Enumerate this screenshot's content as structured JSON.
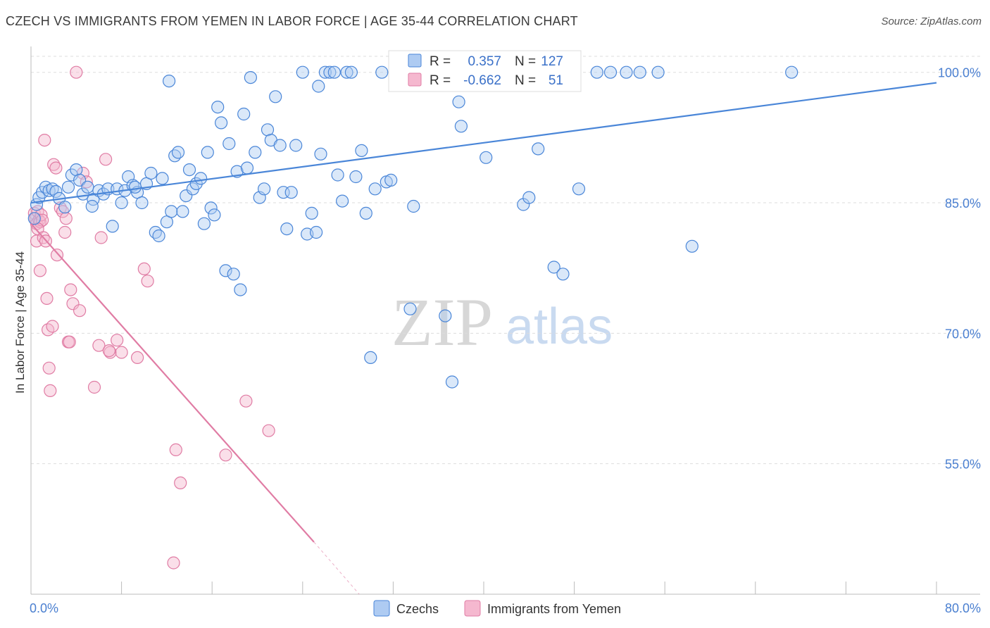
{
  "title": "CZECH VS IMMIGRANTS FROM YEMEN IN LABOR FORCE | AGE 35-44 CORRELATION CHART",
  "source": "Source: ZipAtlas.com",
  "watermark": {
    "zip": "ZIP",
    "atlas": "atlas"
  },
  "colors": {
    "blue": "#4a86d8",
    "blue_fill": "#aecbf2",
    "pink": "#e07ca4",
    "pink_fill": "#f5b8cf",
    "axis_text": "#4a7fd0"
  },
  "stats": {
    "blue": {
      "r_label": "R =",
      "r_value": "0.357",
      "n_label": "N =",
      "n_value": "127"
    },
    "pink": {
      "r_label": "R =",
      "r_value": "-0.662",
      "n_label": "N =",
      "n_value": "51"
    }
  },
  "chart_data": {
    "type": "scatter",
    "ylabel": "In Labor Force | Age 35-44",
    "xlim": [
      0,
      80
    ],
    "ylim": [
      40,
      102
    ],
    "x_tick_labels": [
      "0.0%",
      "80.0%"
    ],
    "y_ticks": [
      55,
      70,
      85,
      100
    ],
    "y_tick_labels": [
      "55.0%",
      "70.0%",
      "85.0%",
      "100.0%"
    ],
    "grid": "horizontal dashed",
    "legend_position": "bottom-center",
    "series": [
      {
        "name": "Czechs",
        "color": "#4a86d8",
        "trendline": {
          "x": [
            0,
            80
          ],
          "y": [
            85.0,
            98.8
          ]
        },
        "points": [
          [
            0.3,
            83.2
          ],
          [
            0.5,
            84.8
          ],
          [
            0.7,
            85.6
          ],
          [
            1.0,
            86.2
          ],
          [
            1.3,
            86.8
          ],
          [
            1.6,
            86.4
          ],
          [
            1.9,
            86.6
          ],
          [
            2.2,
            86.3
          ],
          [
            2.5,
            85.5
          ],
          [
            3.0,
            84.5
          ],
          [
            3.3,
            86.8
          ],
          [
            3.6,
            88.2
          ],
          [
            4.0,
            88.8
          ],
          [
            4.3,
            87.6
          ],
          [
            4.6,
            86.0
          ],
          [
            5.0,
            86.8
          ],
          [
            5.5,
            85.4
          ],
          [
            6.0,
            86.4
          ],
          [
            6.4,
            86.0
          ],
          [
            6.8,
            86.6
          ],
          [
            7.2,
            82.3
          ],
          [
            7.6,
            86.6
          ],
          [
            8.0,
            85.0
          ],
          [
            8.3,
            86.4
          ],
          [
            8.6,
            88.0
          ],
          [
            9.0,
            87.0
          ],
          [
            9.4,
            86.2
          ],
          [
            9.8,
            85.0
          ],
          [
            10.2,
            87.2
          ],
          [
            10.6,
            88.4
          ],
          [
            11.0,
            81.6
          ],
          [
            11.3,
            81.2
          ],
          [
            11.6,
            87.8
          ],
          [
            12.0,
            82.8
          ],
          [
            12.4,
            84.0
          ],
          [
            12.7,
            90.4
          ],
          [
            13.0,
            90.8
          ],
          [
            13.4,
            84.0
          ],
          [
            13.7,
            85.8
          ],
          [
            14.0,
            88.8
          ],
          [
            14.3,
            86.6
          ],
          [
            14.6,
            87.2
          ],
          [
            15.0,
            87.8
          ],
          [
            15.3,
            82.6
          ],
          [
            15.6,
            90.8
          ],
          [
            15.9,
            84.4
          ],
          [
            16.2,
            83.6
          ],
          [
            16.5,
            96.0
          ],
          [
            16.8,
            94.2
          ],
          [
            17.2,
            77.2
          ],
          [
            17.5,
            91.8
          ],
          [
            17.9,
            76.8
          ],
          [
            18.2,
            88.6
          ],
          [
            18.5,
            75.0
          ],
          [
            18.8,
            95.2
          ],
          [
            19.1,
            89.0
          ],
          [
            19.4,
            99.4
          ],
          [
            19.8,
            90.8
          ],
          [
            20.2,
            85.6
          ],
          [
            20.6,
            86.6
          ],
          [
            20.9,
            93.4
          ],
          [
            21.2,
            92.2
          ],
          [
            21.6,
            97.2
          ],
          [
            22.0,
            91.6
          ],
          [
            22.3,
            86.2
          ],
          [
            22.6,
            82.0
          ],
          [
            23.0,
            86.2
          ],
          [
            23.4,
            91.6
          ],
          [
            24.0,
            100.0
          ],
          [
            24.4,
            81.4
          ],
          [
            24.8,
            83.8
          ],
          [
            25.2,
            81.6
          ],
          [
            25.6,
            90.6
          ],
          [
            26.0,
            100.0
          ],
          [
            26.4,
            100.0
          ],
          [
            26.8,
            100.0
          ],
          [
            27.1,
            88.2
          ],
          [
            27.5,
            85.2
          ],
          [
            27.9,
            100.0
          ],
          [
            28.3,
            100.0
          ],
          [
            28.7,
            88.0
          ],
          [
            29.2,
            91.0
          ],
          [
            29.6,
            83.8
          ],
          [
            30.0,
            67.2
          ],
          [
            30.4,
            86.6
          ],
          [
            31.0,
            100.0
          ],
          [
            31.4,
            87.4
          ],
          [
            31.8,
            87.6
          ],
          [
            32.2,
            100.0
          ],
          [
            32.6,
            100.0
          ],
          [
            33.0,
            100.0
          ],
          [
            33.5,
            72.8
          ],
          [
            33.8,
            84.6
          ],
          [
            34.2,
            100.0
          ],
          [
            34.6,
            100.0
          ],
          [
            35.0,
            100.0
          ],
          [
            35.6,
            100.0
          ],
          [
            36.0,
            100.0
          ],
          [
            36.6,
            72.0
          ],
          [
            37.2,
            64.4
          ],
          [
            38.0,
            93.8
          ],
          [
            38.5,
            100.0
          ],
          [
            39.0,
            100.0
          ],
          [
            40.2,
            90.2
          ],
          [
            41.0,
            100.0
          ],
          [
            42.0,
            100.0
          ],
          [
            43.5,
            84.8
          ],
          [
            44.0,
            85.6
          ],
          [
            44.8,
            91.2
          ],
          [
            45.6,
            100.0
          ],
          [
            46.2,
            77.6
          ],
          [
            47.0,
            76.8
          ],
          [
            47.6,
            100.0
          ],
          [
            48.4,
            86.6
          ],
          [
            50.0,
            100.0
          ],
          [
            51.2,
            100.0
          ],
          [
            52.6,
            100.0
          ],
          [
            53.8,
            100.0
          ],
          [
            55.4,
            100.0
          ],
          [
            58.4,
            80.0
          ],
          [
            67.2,
            100.0
          ],
          [
            12.2,
            99.0
          ],
          [
            25.4,
            98.4
          ],
          [
            33.2,
            98.6
          ],
          [
            5.4,
            84.6
          ],
          [
            9.2,
            86.8
          ],
          [
            37.8,
            96.6
          ]
        ]
      },
      {
        "name": "Immigrants from Yemen",
        "color": "#e07ca4",
        "trendline": {
          "x": [
            0,
            25
          ],
          "y": [
            82.6,
            46.0
          ]
        },
        "trendline_extension": {
          "x": [
            25,
            29
          ],
          "y": [
            46.0,
            40.0
          ]
        },
        "points": [
          [
            0.3,
            83.8
          ],
          [
            0.4,
            83.2
          ],
          [
            0.5,
            82.6
          ],
          [
            0.6,
            84.0
          ],
          [
            0.7,
            83.0
          ],
          [
            0.8,
            82.8
          ],
          [
            0.9,
            83.6
          ],
          [
            1.0,
            83.0
          ],
          [
            0.5,
            80.6
          ],
          [
            0.8,
            77.2
          ],
          [
            1.2,
            92.2
          ],
          [
            1.4,
            74.0
          ],
          [
            1.5,
            70.4
          ],
          [
            1.6,
            66.0
          ],
          [
            1.7,
            63.4
          ],
          [
            1.9,
            70.8
          ],
          [
            2.0,
            89.4
          ],
          [
            2.2,
            89.0
          ],
          [
            2.3,
            79.0
          ],
          [
            2.6,
            84.4
          ],
          [
            2.8,
            84.0
          ],
          [
            3.0,
            81.6
          ],
          [
            3.1,
            83.2
          ],
          [
            3.3,
            69.0
          ],
          [
            3.5,
            75.0
          ],
          [
            3.7,
            73.4
          ],
          [
            4.0,
            100.0
          ],
          [
            4.3,
            72.6
          ],
          [
            4.6,
            88.4
          ],
          [
            4.9,
            87.4
          ],
          [
            5.6,
            63.8
          ],
          [
            6.0,
            68.6
          ],
          [
            6.2,
            81.0
          ],
          [
            6.6,
            90.0
          ],
          [
            7.0,
            67.8
          ],
          [
            7.6,
            69.2
          ],
          [
            8.0,
            67.8
          ],
          [
            9.4,
            67.2
          ],
          [
            10.0,
            77.4
          ],
          [
            12.6,
            43.6
          ],
          [
            12.8,
            56.6
          ],
          [
            13.2,
            52.8
          ],
          [
            17.2,
            56.0
          ],
          [
            19.0,
            62.2
          ],
          [
            21.0,
            58.8
          ],
          [
            0.6,
            82.0
          ],
          [
            1.1,
            81.0
          ],
          [
            1.3,
            80.6
          ],
          [
            3.4,
            69.0
          ],
          [
            6.9,
            68.0
          ],
          [
            10.3,
            76.0
          ]
        ]
      }
    ]
  }
}
